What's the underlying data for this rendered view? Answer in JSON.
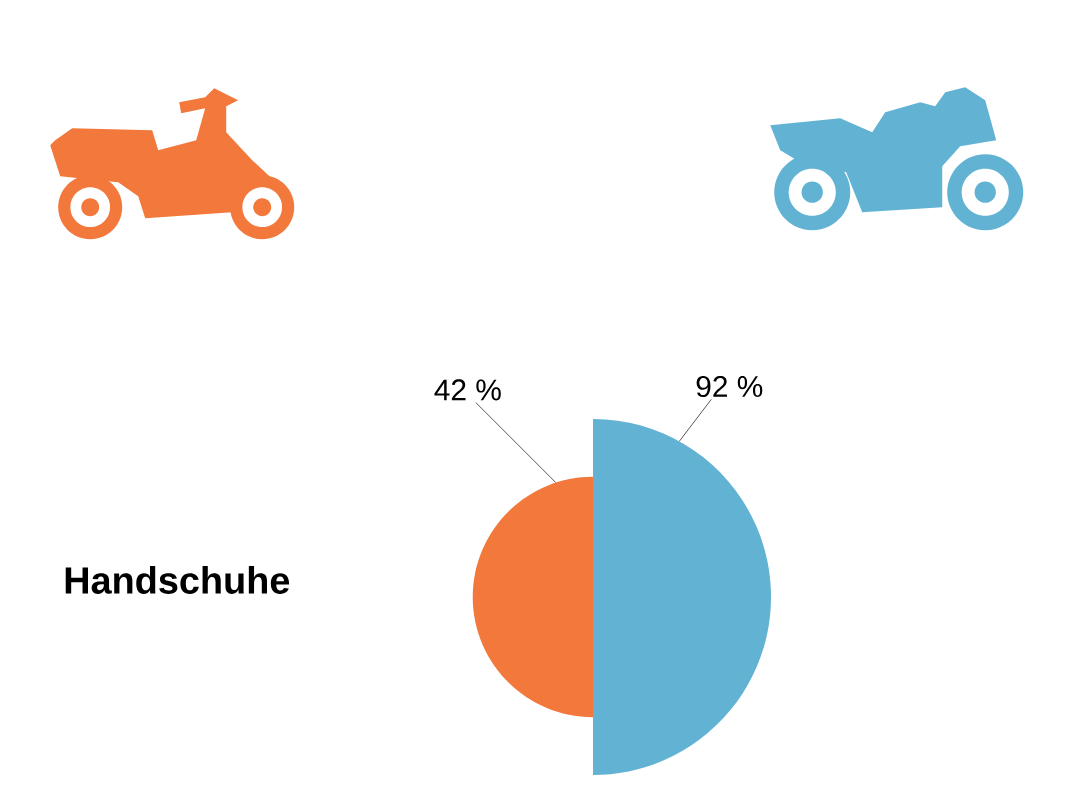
{
  "chart_data": {
    "type": "other",
    "title": "Handschuhe",
    "categories": [
      null,
      null
    ],
    "values": [
      42,
      92
    ],
    "colors": [
      "#f2783c",
      "#62b3d3"
    ],
    "value_labels": [
      "42 %",
      "92 %"
    ]
  }
}
